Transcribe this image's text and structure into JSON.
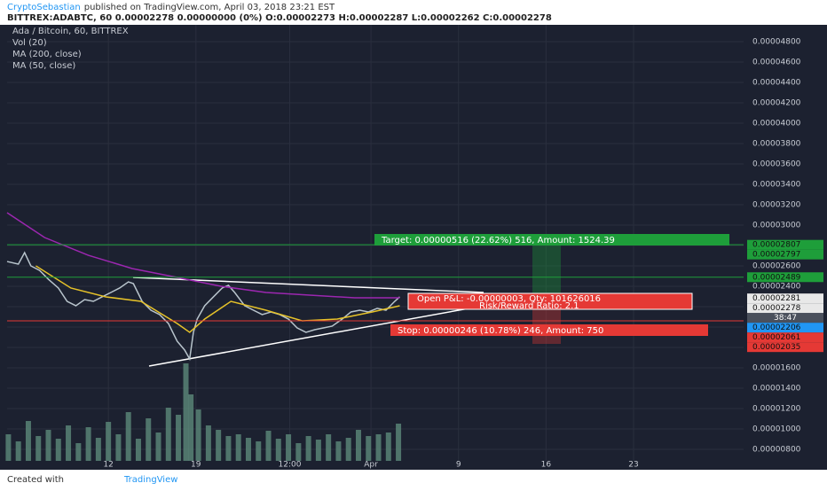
{
  "header": {
    "author": "CryptoSebastian",
    "published": "published on TradingView.com, April 03, 2018 23:21 EST",
    "symbol_line": "BITTREX:ADABTC, 60  0.00002278 0.00000000 (0%)  O:0.00002273  H:0.00002287  L:0.00002262  C:0.00002278"
  },
  "chart_data": {
    "type": "line",
    "series": [
      {
        "name": "Ada / Bitcoin, 60, BITTREX",
        "color": "#b8c4cc",
        "x": [
          3.9,
          4.8,
          5.3,
          5.8,
          6.5,
          7.2,
          8.0,
          8.7,
          9.4,
          10.1,
          10.8,
          11.5,
          12.2,
          12.9,
          13.6,
          14.0,
          14.7,
          15.4,
          16.1,
          16.8,
          17.5,
          18.1,
          18.5,
          18.8,
          19.1,
          19.7,
          20.4,
          21.1,
          21.6,
          22.1,
          22.9,
          23.6,
          24.3,
          25.0,
          25.7,
          26.4,
          27.1,
          27.8,
          28.5,
          29.2,
          29.9,
          30.7,
          31.4,
          32.1,
          32.8,
          33.5,
          34.2,
          34.9,
          35.3
        ],
        "values": [
          2.643e-05,
          2.617e-05,
          2.73e-05,
          2.6e-05,
          2.556e-05,
          2.469e-05,
          2.383e-05,
          2.252e-05,
          2.209e-05,
          2.269e-05,
          2.252e-05,
          2.296e-05,
          2.339e-05,
          2.383e-05,
          2.443e-05,
          2.426e-05,
          2.252e-05,
          2.165e-05,
          2.122e-05,
          2.035e-05,
          1.861e-05,
          1.774e-05,
          1.687e-05,
          1.948e-05,
          2.078e-05,
          2.209e-05,
          2.296e-05,
          2.383e-05,
          2.409e-05,
          2.339e-05,
          2.209e-05,
          2.165e-05,
          2.122e-05,
          2.148e-05,
          2.122e-05,
          2.078e-05,
          1.991e-05,
          1.948e-05,
          1.974e-05,
          1.991e-05,
          2.009e-05,
          2.078e-05,
          2.148e-05,
          2.165e-05,
          2.148e-05,
          2.183e-05,
          2.165e-05,
          2.252e-05,
          2.296e-05
        ]
      },
      {
        "name": "Vol (20)",
        "color": "#5d8a7a",
        "kind": "volume",
        "x": [
          4.0,
          4.8,
          5.6,
          6.4,
          7.2,
          8.0,
          8.8,
          9.6,
          10.4,
          11.2,
          12.0,
          12.8,
          13.6,
          14.4,
          15.2,
          16.0,
          16.8,
          17.6,
          18.2,
          18.6,
          19.2,
          20.0,
          20.8,
          21.6,
          22.4,
          23.2,
          24.0,
          24.8,
          25.6,
          26.4,
          27.2,
          28.0,
          28.8,
          29.6,
          30.4,
          31.2,
          32.0,
          32.8,
          33.6,
          34.4,
          35.2
        ],
        "values": [
          30,
          22,
          45,
          28,
          35,
          25,
          40,
          20,
          38,
          26,
          44,
          30,
          55,
          25,
          48,
          32,
          60,
          52,
          110,
          75,
          58,
          40,
          35,
          28,
          30,
          26,
          22,
          34,
          25,
          30,
          20,
          28,
          24,
          30,
          22,
          26,
          35,
          28,
          30,
          32,
          42
        ]
      },
      {
        "name": "MA (200, close)",
        "color": "#9c27b0",
        "x": [
          3.9,
          6.9,
          10.4,
          13.9,
          17.5,
          21.0,
          24.6,
          28.1,
          31.7,
          35.3
        ],
        "values": [
          3.122e-05,
          2.878e-05,
          2.704e-05,
          2.574e-05,
          2.487e-05,
          2.4e-05,
          2.339e-05,
          2.313e-05,
          2.287e-05,
          2.287e-05
        ]
      },
      {
        "name": "MA (50, close)",
        "color": "#e6c229",
        "x": [
          6.2,
          9.0,
          11.8,
          14.6,
          17.5,
          18.5,
          19.7,
          21.8,
          24.6,
          27.5,
          30.3,
          33.1,
          35.3
        ],
        "values": [
          2.6e-05,
          2.383e-05,
          2.296e-05,
          2.252e-05,
          2.035e-05,
          1.948e-05,
          2.078e-05,
          2.252e-05,
          2.165e-05,
          2.061e-05,
          2.078e-05,
          2.148e-05,
          2.209e-05
        ]
      }
    ],
    "xlim": [
      3.9,
      62.8
    ],
    "xticks": [
      {
        "value": 12,
        "label": "12"
      },
      {
        "value": 19,
        "label": "19"
      },
      {
        "value": 26.5,
        "label": "12:00"
      },
      {
        "value": 33,
        "label": "Apr"
      },
      {
        "value": 40,
        "label": "9"
      },
      {
        "value": 47,
        "label": "16"
      },
      {
        "value": 54,
        "label": "23"
      }
    ],
    "ylim": [
      6.87e-06,
      4.965e-05
    ],
    "yticks": [
      {
        "value": 8e-06,
        "label": "0.00000800"
      },
      {
        "value": 1e-05,
        "label": "0.00001000"
      },
      {
        "value": 1.2e-05,
        "label": "0.00001200"
      },
      {
        "value": 1.4e-05,
        "label": "0.00001400"
      },
      {
        "value": 1.6e-05,
        "label": "0.00001600"
      },
      {
        "value": 1.8e-05,
        "label": "0.00001800"
      },
      {
        "value": 2e-05,
        "label": "0.00002000"
      },
      {
        "value": 2.2e-05,
        "label": "0.00002200"
      },
      {
        "value": 2.4e-05,
        "label": "0.00002400"
      },
      {
        "value": 2.6e-05,
        "label": "0.00002600"
      },
      {
        "value": 2.8e-05,
        "label": "0.00002800"
      },
      {
        "value": 3e-05,
        "label": "0.00003000"
      },
      {
        "value": 3.2e-05,
        "label": "0.00003200"
      },
      {
        "value": 3.4e-05,
        "label": "0.00003400"
      },
      {
        "value": 3.6e-05,
        "label": "0.00003600"
      },
      {
        "value": 3.8e-05,
        "label": "0.00003800"
      },
      {
        "value": 4e-05,
        "label": "0.00004000"
      },
      {
        "value": 4.2e-05,
        "label": "0.00004200"
      },
      {
        "value": 4.4e-05,
        "label": "0.00004400"
      },
      {
        "value": 4.6e-05,
        "label": "0.00004600"
      },
      {
        "value": 4.8e-05,
        "label": "0.00004800"
      }
    ],
    "grid": true,
    "levels": [
      {
        "value": 2.807e-05,
        "label": "0.00002807",
        "color": "#1e9e3a",
        "line": true
      },
      {
        "value": 2.797e-05,
        "label": "0.00002797",
        "color": "#1e9e3a",
        "line": false
      },
      {
        "value": 2.489e-05,
        "label": "0.00002489",
        "color": "#1e9e3a",
        "line": true
      },
      {
        "value": 2.281e-05,
        "label": "0.00002281",
        "color": "#e8e8e8",
        "line": false
      },
      {
        "value": 2.278e-05,
        "label": "0.00002278",
        "color": "#e8e8e8",
        "line": false
      },
      {
        "value": 2.206e-05,
        "label": "0.00002206",
        "color": "#2196f3",
        "line": false
      },
      {
        "value": 2.061e-05,
        "label": "0.00002061",
        "color": "#e53935",
        "line": true
      },
      {
        "value": 2.035e-05,
        "label": "0.00002035",
        "color": "#e53935",
        "line": false
      }
    ],
    "countdown": "38:47",
    "annotations": {
      "target": "Target: 0.00000516 (22.62%) 516, Amount: 1524.39",
      "pnl": "Open P&L: -0.00000003, Qty: 101626016",
      "ratio": "Risk/Reward Ratio: 2.1",
      "stop": "Stop: 0.00000246 (10.78%) 246, Amount: 750"
    }
  },
  "footer": {
    "created_with": "Created with",
    "brand": "TradingView"
  }
}
